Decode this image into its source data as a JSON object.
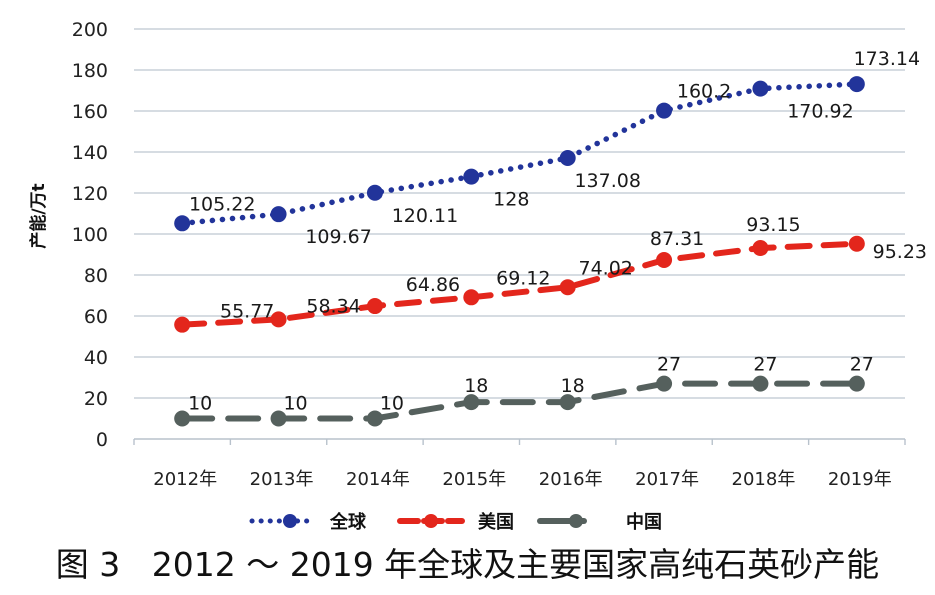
{
  "chart_data": {
    "type": "line",
    "title": "",
    "caption": "图 3   2012 ～ 2019 年全球及主要国家高纯石英砂产能",
    "xlabel": "",
    "ylabel": "产能/万t",
    "ylim": [
      0,
      200
    ],
    "yticks": [
      0,
      20,
      40,
      60,
      80,
      100,
      120,
      140,
      160,
      180,
      200
    ],
    "grid": true,
    "legend_position": "bottom",
    "categories": [
      "2012年",
      "2013年",
      "2014年",
      "2015年",
      "2016年",
      "2017年",
      "2018年",
      "2019年"
    ],
    "series": [
      {
        "name": "全球",
        "color": "#22349a",
        "style": "dotted",
        "marker": "circle",
        "values": [
          105.22,
          109.67,
          120.11,
          128,
          137.08,
          160.2,
          170.92,
          173.14
        ],
        "labels": [
          "105.22",
          "109.67",
          "120.11",
          "128",
          "137.08",
          "160.2",
          "170.92",
          "173.14"
        ]
      },
      {
        "name": "美国",
        "color": "#e3261c",
        "style": "dashed",
        "marker": "circle",
        "values": [
          55.77,
          58.34,
          64.86,
          69.12,
          74.02,
          87.31,
          93.15,
          95.23
        ],
        "labels": [
          "55.77",
          "58.34",
          "64.86",
          "69.12",
          "74.02",
          "87.31",
          "93.15",
          "95.23"
        ]
      },
      {
        "name": "中国",
        "color": "#55605d",
        "style": "long-dash",
        "marker": "circle",
        "values": [
          10,
          10,
          10,
          18,
          18,
          27,
          27,
          27
        ],
        "labels": [
          "10",
          "10",
          "10",
          "18",
          "18",
          "27",
          "27",
          "27"
        ]
      }
    ]
  },
  "axis": {
    "ylabel": "产能/万t",
    "yticks": [
      "0",
      "20",
      "40",
      "60",
      "80",
      "100",
      "120",
      "140",
      "160",
      "180",
      "200"
    ],
    "xticks": [
      "2012年",
      "2013年",
      "2014年",
      "2015年",
      "2016年",
      "2017年",
      "2018年",
      "2019年"
    ]
  },
  "legend": {
    "items": [
      {
        "label": "全球",
        "color": "#22349a"
      },
      {
        "label": "美国",
        "color": "#e3261c"
      },
      {
        "label": "中国",
        "color": "#55605d"
      }
    ]
  },
  "caption": "图 3   2012 ～ 2019 年全球及主要国家高纯石英砂产能",
  "colors": {
    "grid": "#c9d0d8",
    "global": "#22349a",
    "usa": "#e3261c",
    "china": "#55605d"
  }
}
